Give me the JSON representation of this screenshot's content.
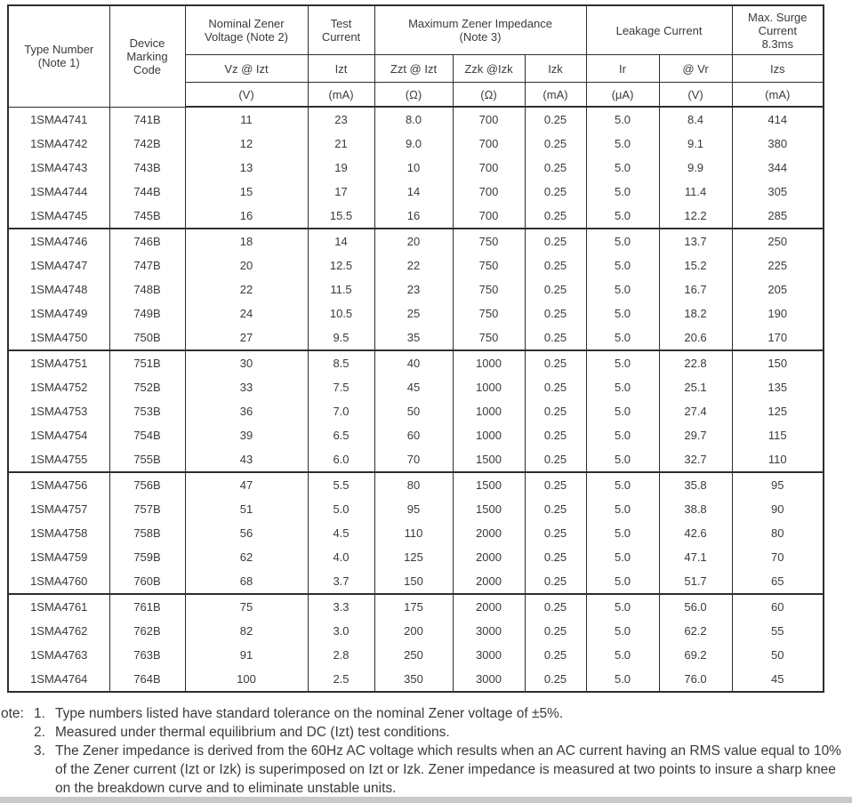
{
  "colors": {
    "text": "#3a3a3a",
    "border": "#2e2e2e",
    "background": "#ffffff",
    "bottom_strip": "#c9c9c9"
  },
  "table": {
    "corner": {
      "type_number": "Type Number\n(Note 1)",
      "device_marking": "Device\nMarking\nCode"
    },
    "groups": [
      {
        "label": "Nominal Zener\nVoltage (Note 2)"
      },
      {
        "label": "Test\nCurrent"
      },
      {
        "label": "Maximum Zener Impedance\n(Note 3)"
      },
      {
        "label": "Leakage Current"
      },
      {
        "label": "Max. Surge\nCurrent\n8.3ms"
      }
    ],
    "subheaders": [
      "Vz @ Izt",
      "Izt",
      "Zzt @ Izt",
      "Zzk @Izk",
      "Izk",
      "Ir",
      "@ Vr",
      "Izs"
    ],
    "units": [
      "(V)",
      "(mA)",
      "(Ω)",
      "(Ω)",
      "(mA)",
      "(μA)",
      "(V)",
      "(mA)"
    ],
    "rows": [
      [
        "1SMA4741",
        "741B",
        "11",
        "23",
        "8.0",
        "700",
        "0.25",
        "5.0",
        "8.4",
        "414"
      ],
      [
        "1SMA4742",
        "742B",
        "12",
        "21",
        "9.0",
        "700",
        "0.25",
        "5.0",
        "9.1",
        "380"
      ],
      [
        "1SMA4743",
        "743B",
        "13",
        "19",
        "10",
        "700",
        "0.25",
        "5.0",
        "9.9",
        "344"
      ],
      [
        "1SMA4744",
        "744B",
        "15",
        "17",
        "14",
        "700",
        "0.25",
        "5.0",
        "11.4",
        "305"
      ],
      [
        "1SMA4745",
        "745B",
        "16",
        "15.5",
        "16",
        "700",
        "0.25",
        "5.0",
        "12.2",
        "285"
      ],
      [
        "1SMA4746",
        "746B",
        "18",
        "14",
        "20",
        "750",
        "0.25",
        "5.0",
        "13.7",
        "250"
      ],
      [
        "1SMA4747",
        "747B",
        "20",
        "12.5",
        "22",
        "750",
        "0.25",
        "5.0",
        "15.2",
        "225"
      ],
      [
        "1SMA4748",
        "748B",
        "22",
        "11.5",
        "23",
        "750",
        "0.25",
        "5.0",
        "16.7",
        "205"
      ],
      [
        "1SMA4749",
        "749B",
        "24",
        "10.5",
        "25",
        "750",
        "0.25",
        "5.0",
        "18.2",
        "190"
      ],
      [
        "1SMA4750",
        "750B",
        "27",
        "9.5",
        "35",
        "750",
        "0.25",
        "5.0",
        "20.6",
        "170"
      ],
      [
        "1SMA4751",
        "751B",
        "30",
        "8.5",
        "40",
        "1000",
        "0.25",
        "5.0",
        "22.8",
        "150"
      ],
      [
        "1SMA4752",
        "752B",
        "33",
        "7.5",
        "45",
        "1000",
        "0.25",
        "5.0",
        "25.1",
        "135"
      ],
      [
        "1SMA4753",
        "753B",
        "36",
        "7.0",
        "50",
        "1000",
        "0.25",
        "5.0",
        "27.4",
        "125"
      ],
      [
        "1SMA4754",
        "754B",
        "39",
        "6.5",
        "60",
        "1000",
        "0.25",
        "5.0",
        "29.7",
        "115"
      ],
      [
        "1SMA4755",
        "755B",
        "43",
        "6.0",
        "70",
        "1500",
        "0.25",
        "5.0",
        "32.7",
        "110"
      ],
      [
        "1SMA4756",
        "756B",
        "47",
        "5.5",
        "80",
        "1500",
        "0.25",
        "5.0",
        "35.8",
        "95"
      ],
      [
        "1SMA4757",
        "757B",
        "51",
        "5.0",
        "95",
        "1500",
        "0.25",
        "5.0",
        "38.8",
        "90"
      ],
      [
        "1SMA4758",
        "758B",
        "56",
        "4.5",
        "110",
        "2000",
        "0.25",
        "5.0",
        "42.6",
        "80"
      ],
      [
        "1SMA4759",
        "759B",
        "62",
        "4.0",
        "125",
        "2000",
        "0.25",
        "5.0",
        "47.1",
        "70"
      ],
      [
        "1SMA4760",
        "760B",
        "68",
        "3.7",
        "150",
        "2000",
        "0.25",
        "5.0",
        "51.7",
        "65"
      ],
      [
        "1SMA4761",
        "761B",
        "75",
        "3.3",
        "175",
        "2000",
        "0.25",
        "5.0",
        "56.0",
        "60"
      ],
      [
        "1SMA4762",
        "762B",
        "82",
        "3.0",
        "200",
        "3000",
        "0.25",
        "5.0",
        "62.2",
        "55"
      ],
      [
        "1SMA4763",
        "763B",
        "91",
        "2.8",
        "250",
        "3000",
        "0.25",
        "5.0",
        "69.2",
        "50"
      ],
      [
        "1SMA4764",
        "764B",
        "100",
        "2.5",
        "350",
        "3000",
        "0.25",
        "5.0",
        "76.0",
        "45"
      ]
    ]
  },
  "notes": {
    "label": "ote:",
    "items": [
      {
        "num": "1.",
        "text": "Type numbers listed have standard tolerance on the nominal Zener voltage of ±5%."
      },
      {
        "num": "2.",
        "text": "Measured under thermal equilibrium and DC (Izt) test conditions."
      },
      {
        "num": "3.",
        "text": "The Zener impedance is derived from the 60Hz AC voltage which results when an AC current having an RMS value equal to 10% of the Zener current (Izt or Izk) is superimposed on Izt or Izk. Zener impedance is measured at two points to insure a sharp knee on the breakdown curve and to eliminate unstable units."
      }
    ]
  }
}
